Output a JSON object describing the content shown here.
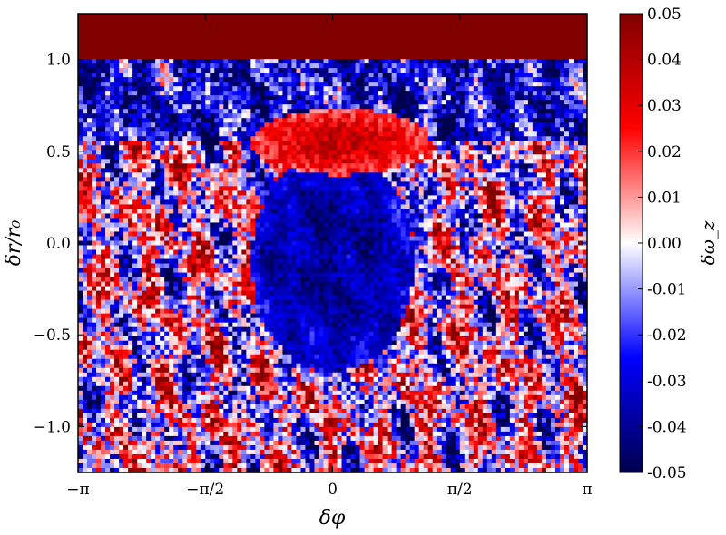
{
  "chart_data": {
    "type": "heatmap",
    "title": "",
    "xlabel": "δφ",
    "ylabel": "δr/r₀",
    "colorbar_label": "δω_z",
    "colormap": "seismic",
    "colormap_stops": [
      "#00004d",
      "#0000ff",
      "#ffffff",
      "#ff0000",
      "#800000"
    ],
    "xlim": [
      -3.14159,
      3.14159
    ],
    "ylim": [
      -1.25,
      1.25
    ],
    "clim": [
      -0.05,
      0.05
    ],
    "x_ticks": [
      {
        "value": -3.14159,
        "label": "−π"
      },
      {
        "value": -1.5708,
        "label": "−π/2"
      },
      {
        "value": 0,
        "label": "0"
      },
      {
        "value": 1.5708,
        "label": "π/2"
      },
      {
        "value": 3.14159,
        "label": "π"
      }
    ],
    "y_ticks": [
      {
        "value": -1.0,
        "label": "−1.0"
      },
      {
        "value": -0.5,
        "label": "−0.5"
      },
      {
        "value": 0.0,
        "label": "0.0"
      },
      {
        "value": 0.5,
        "label": "0.5"
      },
      {
        "value": 1.0,
        "label": "1.0"
      }
    ],
    "colorbar_ticks": [
      {
        "value": 0.05,
        "label": "0.05"
      },
      {
        "value": 0.04,
        "label": "0.04"
      },
      {
        "value": 0.03,
        "label": "0.03"
      },
      {
        "value": 0.02,
        "label": "0.02"
      },
      {
        "value": 0.01,
        "label": "0.01"
      },
      {
        "value": 0.0,
        "label": "0.00"
      },
      {
        "value": -0.01,
        "label": "-0.01"
      },
      {
        "value": -0.02,
        "label": "-0.02"
      },
      {
        "value": -0.03,
        "label": "-0.03"
      },
      {
        "value": -0.04,
        "label": "-0.04"
      },
      {
        "value": -0.05,
        "label": "-0.05"
      }
    ],
    "features": [
      {
        "name": "central-vortex",
        "center_x": 0.0,
        "center_y": -0.1,
        "half_width_x": 1.0,
        "half_height_y": 0.6,
        "value": -0.03
      },
      {
        "name": "upper-red-arc",
        "center_x": 0.1,
        "center_y": 0.55,
        "half_width_x": 1.1,
        "half_height_y": 0.18,
        "value": 0.035
      },
      {
        "name": "top-red-band",
        "y_min": 1.0,
        "y_max": 1.25,
        "value": 0.05
      },
      {
        "name": "blue-band-below-top",
        "y_min": 0.55,
        "y_max": 1.0,
        "value": -0.035
      }
    ]
  }
}
